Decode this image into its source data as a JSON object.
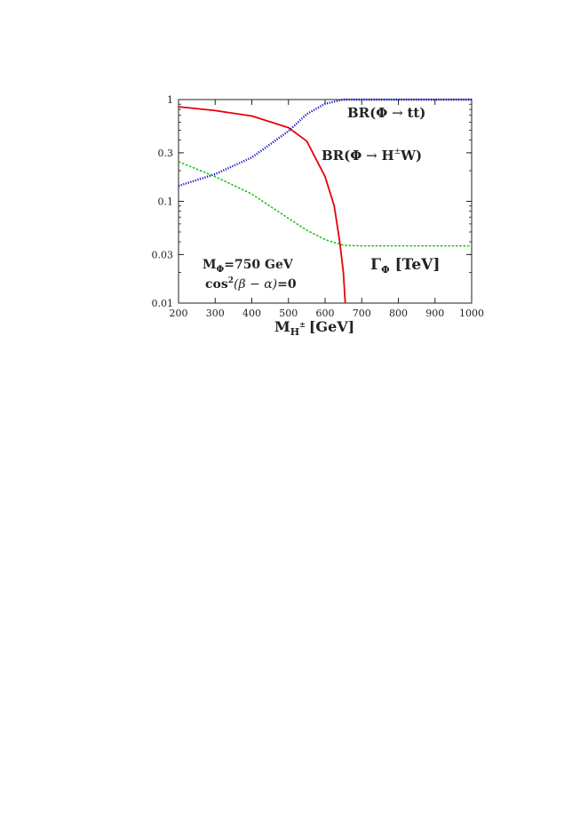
{
  "chart_data": {
    "type": "line",
    "xlabel_main": "M",
    "xlabel_sub": "H",
    "xlabel_sup": "±",
    "xlabel_unit": "[GeV]",
    "xlim": [
      200,
      1000
    ],
    "ylim": [
      0.01,
      1
    ],
    "y_scale": "log",
    "grid": false,
    "x_ticks": [
      200,
      300,
      400,
      500,
      600,
      700,
      800,
      900,
      1000
    ],
    "y_ticks": [
      {
        "value": 0.01,
        "label": "0.01"
      },
      {
        "value": 0.03,
        "label": "0.03"
      },
      {
        "value": 0.1,
        "label": "0.1"
      },
      {
        "value": 0.3,
        "label": "0.3"
      },
      {
        "value": 1,
        "label": "1"
      }
    ],
    "series": [
      {
        "color": "#e8000b",
        "style": "solid",
        "points": [
          [
            200,
            0.85
          ],
          [
            300,
            0.78
          ],
          [
            400,
            0.69
          ],
          [
            500,
            0.53
          ],
          [
            550,
            0.39
          ],
          [
            600,
            0.175
          ],
          [
            625,
            0.09
          ],
          [
            640,
            0.04
          ],
          [
            650,
            0.02
          ],
          [
            655,
            0.01
          ]
        ]
      },
      {
        "color": "#1010d0",
        "style": "dotted",
        "points": [
          [
            200,
            0.142
          ],
          [
            300,
            0.185
          ],
          [
            400,
            0.27
          ],
          [
            500,
            0.49
          ],
          [
            550,
            0.72
          ],
          [
            600,
            0.91
          ],
          [
            650,
            1.0
          ],
          [
            700,
            1.0
          ],
          [
            800,
            1.0
          ],
          [
            900,
            1.0
          ],
          [
            1000,
            1.0
          ]
        ]
      },
      {
        "color": "#10c010",
        "style": "dashed",
        "points": [
          [
            200,
            0.245
          ],
          [
            300,
            0.175
          ],
          [
            400,
            0.118
          ],
          [
            500,
            0.068
          ],
          [
            550,
            0.052
          ],
          [
            600,
            0.042
          ],
          [
            650,
            0.037
          ],
          [
            700,
            0.0365
          ],
          [
            800,
            0.0365
          ],
          [
            900,
            0.0365
          ],
          [
            1000,
            0.0365
          ]
        ]
      }
    ],
    "annotations": {
      "br_tt": {
        "prefix": "BR(",
        "phi": "Φ",
        "arrow": " → ",
        "tail": "tt)"
      },
      "br_hw": {
        "prefix": "BR(",
        "phi": "Φ",
        "arrow": " → ",
        "h": "H",
        "sup": "±",
        "tail": "W)"
      },
      "gamma": {
        "gamma": "Γ",
        "sub": "Φ",
        "tail": " [TeV]"
      },
      "mass": {
        "m": "M",
        "sub": "Φ",
        "tail": "=750 GeV"
      },
      "cos": {
        "cos": "cos",
        "sup": "2",
        "mid": "(β − α)",
        "tail": "=0"
      }
    }
  }
}
